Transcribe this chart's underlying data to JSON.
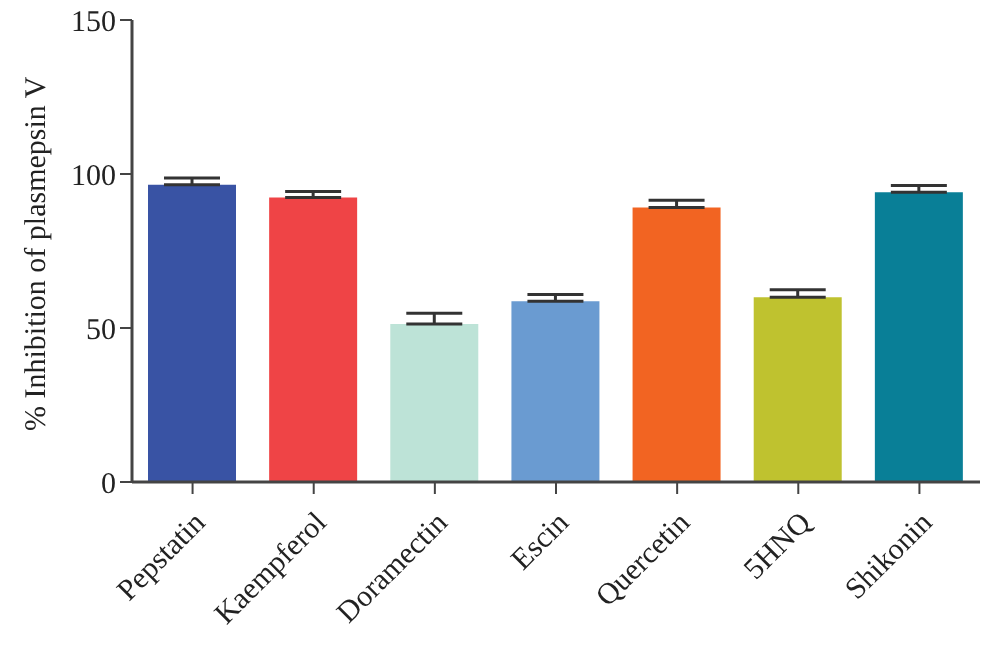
{
  "chart_data": {
    "type": "bar",
    "ylabel": "% Inhibition of plasmepsin V",
    "categories": [
      "Pepstatin",
      "Kaempferol",
      "Doramectin",
      "Escin",
      "Quercetin",
      "5HNQ",
      "Shikonin"
    ],
    "values": [
      96.5,
      92.4,
      51.3,
      58.7,
      89.1,
      60,
      94.1
    ],
    "errors": [
      [
        96.5,
        98.7
      ],
      [
        92.4,
        94.3
      ],
      [
        51.3,
        54.8
      ],
      [
        58.7,
        60.9
      ],
      [
        89.1,
        91.5
      ],
      [
        60,
        62.4
      ],
      [
        94.1,
        96.3
      ]
    ],
    "colors": [
      "#3953a4",
      "#ef4446",
      "#bde3d7",
      "#6a9bd1",
      "#f26422",
      "#bfc22f",
      "#097f97"
    ],
    "ylim": [
      0,
      150
    ],
    "yticks": [
      0,
      50,
      100,
      150
    ],
    "grid": false,
    "legend": false
  }
}
